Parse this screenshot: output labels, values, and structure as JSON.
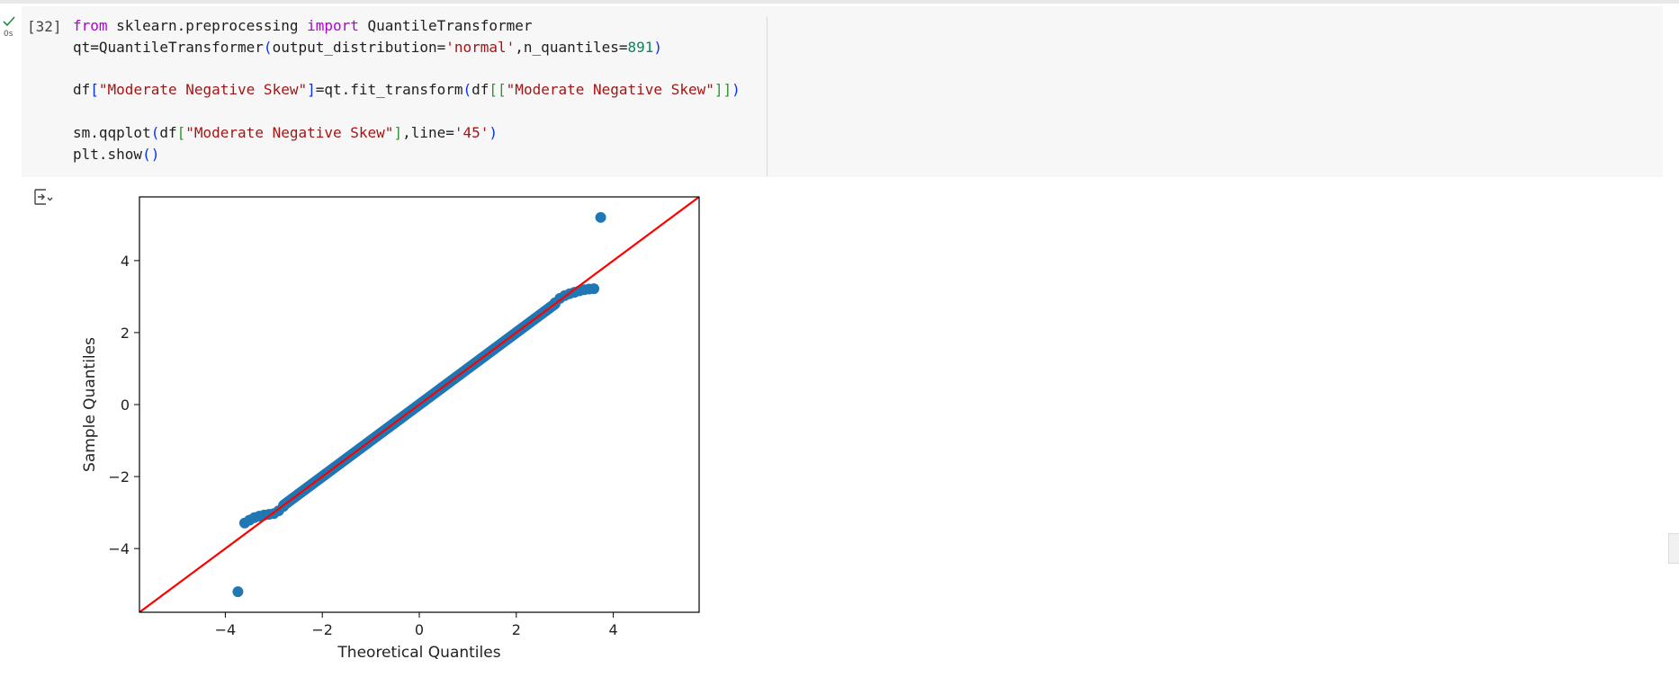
{
  "cell": {
    "run_time": "0s",
    "execution_count": "[32]",
    "code_lines": [
      [
        {
          "t": "from",
          "c": "kw"
        },
        {
          "t": " sklearn.preprocessing ",
          "c": ""
        },
        {
          "t": "import",
          "c": "kw"
        },
        {
          "t": " QuantileTransformer",
          "c": ""
        }
      ],
      [
        {
          "t": "qt=QuantileTransformer",
          "c": ""
        },
        {
          "t": "(",
          "c": "b1"
        },
        {
          "t": "output_distribution=",
          "c": ""
        },
        {
          "t": "'normal'",
          "c": "str"
        },
        {
          "t": ",n_quantiles=",
          "c": ""
        },
        {
          "t": "891",
          "c": "num"
        },
        {
          "t": ")",
          "c": "b1"
        }
      ],
      [],
      [
        {
          "t": "df",
          "c": ""
        },
        {
          "t": "[",
          "c": "b1"
        },
        {
          "t": "\"Moderate Negative Skew\"",
          "c": "str"
        },
        {
          "t": "]",
          "c": "b1"
        },
        {
          "t": "=qt.fit_transform",
          "c": ""
        },
        {
          "t": "(",
          "c": "b1"
        },
        {
          "t": "df",
          "c": ""
        },
        {
          "t": "[[",
          "c": "b2"
        },
        {
          "t": "\"Moderate Negative Skew\"",
          "c": "str"
        },
        {
          "t": "]]",
          "c": "b2"
        },
        {
          "t": ")",
          "c": "b1"
        }
      ],
      [],
      [
        {
          "t": "sm.qqplot",
          "c": ""
        },
        {
          "t": "(",
          "c": "b1"
        },
        {
          "t": "df",
          "c": ""
        },
        {
          "t": "[",
          "c": "b2"
        },
        {
          "t": "\"Moderate Negative Skew\"",
          "c": "str"
        },
        {
          "t": "]",
          "c": "b2"
        },
        {
          "t": ",line=",
          "c": ""
        },
        {
          "t": "'45'",
          "c": "str"
        },
        {
          "t": ")",
          "c": "b1"
        }
      ],
      [
        {
          "t": "plt.show",
          "c": ""
        },
        {
          "t": "()",
          "c": "b1"
        }
      ]
    ]
  },
  "output": {
    "toggle_icon": "output-toggle-icon"
  },
  "chart_data": {
    "type": "scatter",
    "xlabel": "Theoretical Quantiles",
    "ylabel": "Sample Quantiles",
    "xlim": [
      -5.77,
      5.77
    ],
    "ylim": [
      -5.77,
      5.77
    ],
    "xticks": [
      -4,
      -2,
      0,
      2,
      4
    ],
    "yticks": [
      -4,
      -2,
      0,
      2,
      4
    ],
    "xtick_labels": [
      "−4",
      "−2",
      "0",
      "2",
      "4"
    ],
    "ytick_labels": [
      "−4",
      "−2",
      "0",
      "2",
      "4"
    ],
    "grid": false,
    "reference_line": {
      "type": "45-degree",
      "color": "#ff0000"
    },
    "marker_color": "#1f77b4",
    "series": [
      {
        "outliers": [
          [
            -3.74,
            -5.2
          ],
          [
            3.74,
            5.2
          ]
        ],
        "lower_tail": [
          [
            -3.6,
            -3.29
          ],
          [
            -3.5,
            -3.21
          ],
          [
            -3.4,
            -3.14
          ],
          [
            -3.3,
            -3.1
          ],
          [
            -3.2,
            -3.07
          ],
          [
            -3.1,
            -3.05
          ],
          [
            -3.0,
            -3.03
          ],
          [
            -2.9,
            -2.95
          ],
          [
            -2.8,
            -2.83
          ]
        ],
        "upper_tail": [
          [
            2.8,
            2.83
          ],
          [
            2.9,
            2.95
          ],
          [
            3.0,
            3.03
          ],
          [
            3.1,
            3.08
          ],
          [
            3.2,
            3.12
          ],
          [
            3.3,
            3.16
          ],
          [
            3.4,
            3.19
          ],
          [
            3.5,
            3.21
          ],
          [
            3.6,
            3.22
          ]
        ],
        "body_range": [
          -2.8,
          2.8
        ]
      }
    ]
  }
}
